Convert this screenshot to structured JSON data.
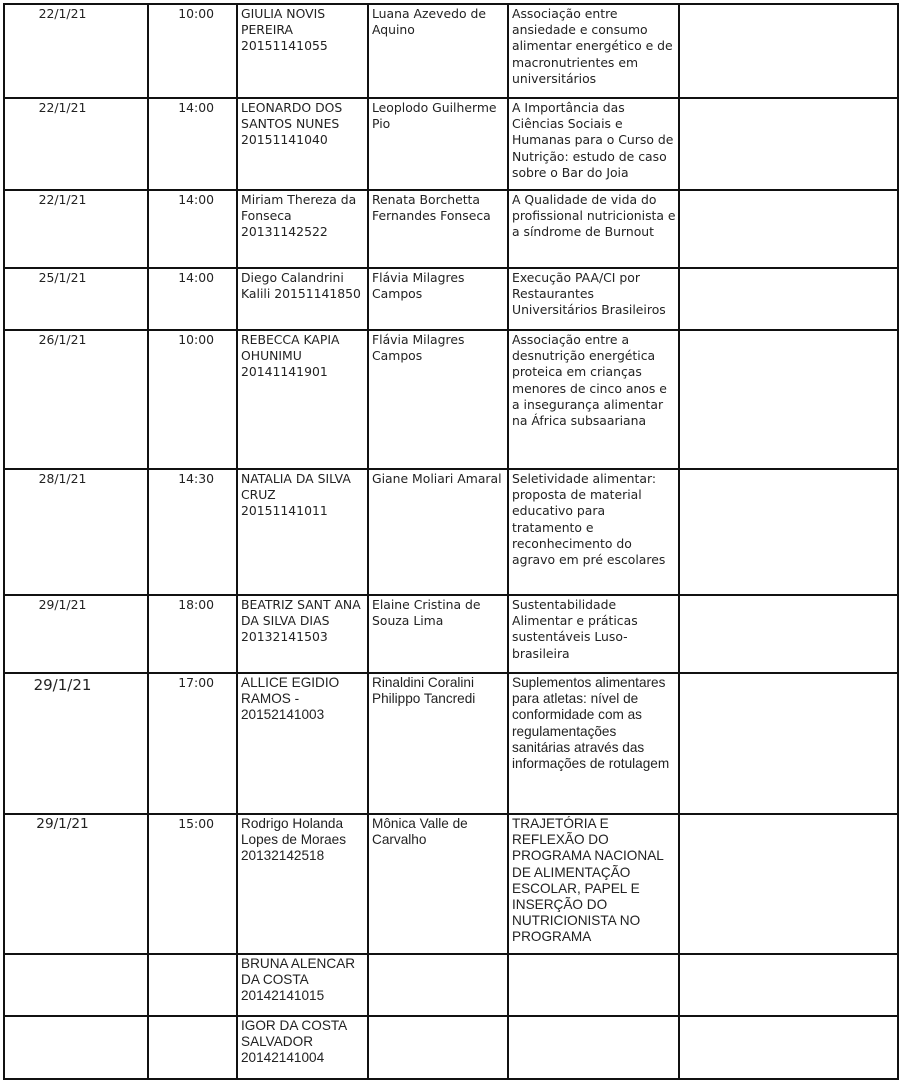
{
  "rows": [
    {
      "date": "22/1/21",
      "time": "10:00",
      "student": "GIULIA NOVIS PEREIRA 20151141055",
      "advisor": "Luana Azevedo de Aquino",
      "title": "Associação entre ansiedade e consumo alimentar energético e de macronutrientes em universitários",
      "extra": ""
    },
    {
      "date": "22/1/21",
      "time": "14:00",
      "student": "LEONARDO DOS SANTOS NUNES 20151141040",
      "advisor": "Leoplodo Guilherme Pio",
      "title": "A Importância das Ciências Sociais e Humanas para o Curso de Nutrição: estudo de caso sobre o Bar do Joia",
      "extra": ""
    },
    {
      "date": "22/1/21",
      "time": "14:00",
      "student": "Miriam Thereza da Fonseca 20131142522",
      "advisor": "Renata Borchetta Fernandes Fonseca",
      "title": "A Qualidade de vida do profissional nutricionista e a síndrome de Burnout",
      "extra": ""
    },
    {
      "date": "25/1/21",
      "time": "14:00",
      "student": "Diego Calandrini Kalili 20151141850",
      "advisor": "Flávia Milagres Campos",
      "title": "Execução PAA/CI por Restaurantes Universitários Brasileiros",
      "extra": ""
    },
    {
      "date": "26/1/21",
      "time": "10:00",
      "student": "REBECCA KAPIA OHUNIMU 20141141901",
      "advisor": "Flávia Milagres Campos",
      "title": "Associação entre a desnutrição energética proteica em crianças menores de cinco anos e a insegurança alimentar na África subsaariana",
      "extra": ""
    },
    {
      "date": "28/1/21",
      "time": "14:30",
      "student": "NATALIA DA SILVA CRUZ 20151141011",
      "advisor": "Giane Moliari Amaral",
      "title": "Seletividade alimentar: proposta de material educativo para tratamento e reconhecimento do agravo em pré escolares",
      "extra": ""
    },
    {
      "date": "29/1/21",
      "time": "18:00",
      "student": "BEATRIZ SANT ANA DA SILVA DIAS 20132141503",
      "advisor": "Elaine Cristina de Souza Lima",
      "title": "Sustentabilidade Alimentar e práticas sustentáveis Luso-brasileira",
      "extra": ""
    },
    {
      "date": "29/1/21",
      "time": "17:00",
      "student": "ALLICE EGIDIO RAMOS - 20152141003",
      "advisor": "Rinaldini Coralini Philippo Tancredi",
      "title": "Suplementos alimentares para atletas: nível de conformidade com as regulamentações sanitárias através das informações de rotulagem",
      "extra": ""
    },
    {
      "date": "29/1/21",
      "time": "15:00",
      "student": "Rodrigo Holanda Lopes de Moraes 20132142518",
      "advisor": "Mônica Valle de Carvalho",
      "title": "TRAJETÓRIA E REFLEXÃO DO PROGRAMA NACIONAL DE ALIMENTAÇÃO ESCOLAR, PAPEL E INSERÇÃO DO NUTRICIONISTA NO PROGRAMA",
      "extra": ""
    },
    {
      "date": "",
      "time": "",
      "student": "BRUNA ALENCAR DA COSTA 20142141015",
      "advisor": "",
      "title": "",
      "extra": ""
    },
    {
      "date": "",
      "time": "",
      "student": "IGOR DA COSTA SALVADOR 20142141004",
      "advisor": "",
      "title": "",
      "extra": ""
    }
  ]
}
